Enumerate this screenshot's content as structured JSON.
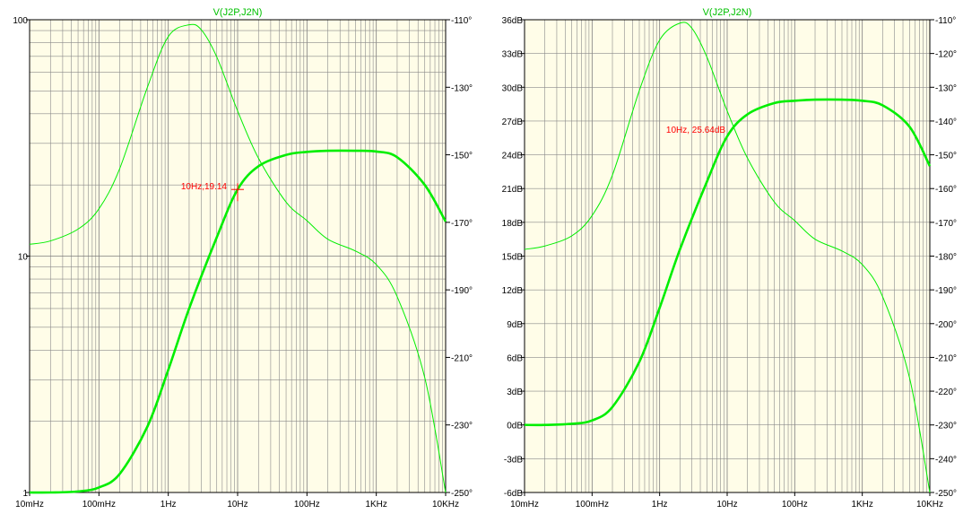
{
  "chart_data": [
    {
      "type": "line",
      "title": "V(J2P,J2N)",
      "x_scale": "log",
      "xlim": [
        0.01,
        10000
      ],
      "x_tick_labels": [
        "10mHz",
        "100mHz",
        "1Hz",
        "10Hz",
        "100Hz",
        "1KHz",
        "10KHz"
      ],
      "x_tick_values": [
        0.01,
        0.1,
        1,
        10,
        100,
        1000,
        10000
      ],
      "y_scale": "log",
      "ylim": [
        1,
        100
      ],
      "y_tick_labels": [
        "1",
        "10",
        "100"
      ],
      "y_tick_values": [
        1,
        10,
        100
      ],
      "y2lim": [
        -250,
        -110
      ],
      "y2_tick_labels": [
        "-110°",
        "-130°",
        "-150°",
        "-170°",
        "-190°",
        "-210°",
        "-230°",
        "-250°"
      ],
      "y2_tick_values": [
        -110,
        -130,
        -150,
        -170,
        -190,
        -210,
        -230,
        -250
      ],
      "grid": true,
      "background": "#fffde8",
      "line_color": "#00ee00",
      "annotation_color": "#ff0000",
      "annotation": {
        "label": "10Hz,19.14",
        "x": 10,
        "y": 19.14
      },
      "series": [
        {
          "role": "magnitude",
          "x": [
            0.01,
            0.02,
            0.05,
            0.1,
            0.2,
            0.5,
            1,
            2,
            5,
            10,
            20,
            50,
            100,
            200,
            500,
            1000,
            2000,
            5000,
            10000
          ],
          "y": [
            1.0,
            1.0,
            1.01,
            1.05,
            1.2,
            1.9,
            3.3,
            6.0,
            12.0,
            19.14,
            24.0,
            26.8,
            27.6,
            27.9,
            27.9,
            27.7,
            26.2,
            20.0,
            14.0
          ]
        },
        {
          "role": "phase",
          "axis": "y2",
          "x": [
            0.01,
            0.02,
            0.05,
            0.1,
            0.2,
            0.5,
            1,
            2,
            3,
            5,
            10,
            20,
            50,
            100,
            200,
            500,
            1000,
            2000,
            5000,
            10000
          ],
          "y": [
            -176.5,
            -175.5,
            -172,
            -166,
            -154,
            -130,
            -115,
            -111.5,
            -113,
            -121,
            -137,
            -151,
            -164,
            -169.5,
            -175,
            -178.5,
            -182.5,
            -192,
            -216,
            -250
          ]
        }
      ]
    },
    {
      "type": "line",
      "title": "V(J2P,J2N)",
      "x_scale": "log",
      "xlim": [
        0.01,
        10000
      ],
      "x_tick_labels": [
        "10mHz",
        "100mHz",
        "1Hz",
        "10Hz",
        "100Hz",
        "1KHz",
        "10KHz"
      ],
      "x_tick_values": [
        0.01,
        0.1,
        1,
        10,
        100,
        1000,
        10000
      ],
      "ylim": [
        -6,
        36
      ],
      "y_tick_labels": [
        "36dB",
        "33dB",
        "30dB",
        "27dB",
        "24dB",
        "21dB",
        "18dB",
        "15dB",
        "12dB",
        "9dB",
        "6dB",
        "3dB",
        "0dB",
        "-3dB",
        "-6dB"
      ],
      "y_tick_values": [
        36,
        33,
        30,
        27,
        24,
        21,
        18,
        15,
        12,
        9,
        6,
        3,
        0,
        -3,
        -6
      ],
      "y2lim": [
        -250,
        -110
      ],
      "y2_tick_labels": [
        "-110°",
        "-120°",
        "-130°",
        "-140°",
        "-150°",
        "-160°",
        "-170°",
        "-180°",
        "-190°",
        "-200°",
        "-210°",
        "-220°",
        "-230°",
        "-240°",
        "-250°"
      ],
      "y2_tick_values": [
        -110,
        -120,
        -130,
        -140,
        -150,
        -160,
        -170,
        -180,
        -190,
        -200,
        -210,
        -220,
        -230,
        -240,
        -250
      ],
      "grid": true,
      "background": "#fffde8",
      "line_color": "#00ee00",
      "annotation_color": "#ff0000",
      "annotation": {
        "label": "10Hz, 25.64dB",
        "x": 10,
        "y": 25.64
      },
      "series": [
        {
          "role": "magnitude",
          "x": [
            0.01,
            0.02,
            0.05,
            0.1,
            0.2,
            0.5,
            1,
            2,
            5,
            10,
            20,
            50,
            100,
            200,
            500,
            1000,
            2000,
            5000,
            10000
          ],
          "y": [
            0.0,
            0.0,
            0.1,
            0.4,
            1.6,
            5.6,
            10.4,
            15.6,
            21.6,
            25.64,
            27.6,
            28.6,
            28.8,
            28.9,
            28.9,
            28.8,
            28.4,
            26.5,
            23.0
          ]
        },
        {
          "role": "phase",
          "axis": "y2",
          "x": [
            0.01,
            0.02,
            0.05,
            0.1,
            0.2,
            0.5,
            1,
            2,
            3,
            5,
            10,
            20,
            50,
            100,
            200,
            500,
            1000,
            2000,
            5000,
            10000
          ],
          "y": [
            -178,
            -177,
            -174,
            -168,
            -156,
            -131,
            -116,
            -111,
            -112.5,
            -121,
            -137,
            -151,
            -164,
            -169.5,
            -175,
            -178.5,
            -182.5,
            -192,
            -216,
            -250
          ]
        }
      ]
    }
  ]
}
